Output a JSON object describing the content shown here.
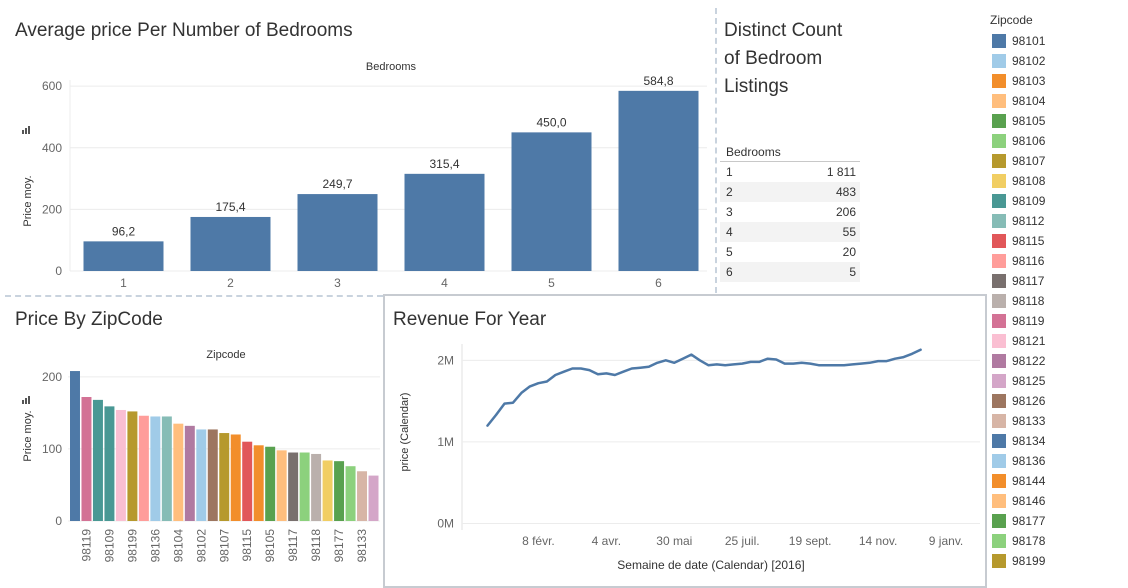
{
  "sections": {
    "bedrooms_title": "Average price Per Number of Bedrooms",
    "distinct_title": "Distinct Count of Bedroom Listings",
    "zip_title": "Price By ZipCode",
    "revenue_title": "Revenue For Year"
  },
  "legend": {
    "title": "Zipcode",
    "items": [
      {
        "label": "98101",
        "color": "#4e79a7"
      },
      {
        "label": "98102",
        "color": "#a0cbe8"
      },
      {
        "label": "98103",
        "color": "#f28e2b"
      },
      {
        "label": "98104",
        "color": "#ffbe7d"
      },
      {
        "label": "98105",
        "color": "#59a14f"
      },
      {
        "label": "98106",
        "color": "#8cd17d"
      },
      {
        "label": "98107",
        "color": "#b6992d"
      },
      {
        "label": "98108",
        "color": "#f1ce63"
      },
      {
        "label": "98109",
        "color": "#499894"
      },
      {
        "label": "98112",
        "color": "#86bcb6"
      },
      {
        "label": "98115",
        "color": "#e15759"
      },
      {
        "label": "98116",
        "color": "#ff9d9a"
      },
      {
        "label": "98117",
        "color": "#79706e"
      },
      {
        "label": "98118",
        "color": "#bab0ac"
      },
      {
        "label": "98119",
        "color": "#d37295"
      },
      {
        "label": "98121",
        "color": "#fabfd2"
      },
      {
        "label": "98122",
        "color": "#b07aa1"
      },
      {
        "label": "98125",
        "color": "#d4a6c8"
      },
      {
        "label": "98126",
        "color": "#9d7660"
      },
      {
        "label": "98133",
        "color": "#d7b5a6"
      },
      {
        "label": "98134",
        "color": "#4e79a7"
      },
      {
        "label": "98136",
        "color": "#a0cbe8"
      },
      {
        "label": "98144",
        "color": "#f28e2b"
      },
      {
        "label": "98146",
        "color": "#ffbe7d"
      },
      {
        "label": "98177",
        "color": "#59a14f"
      },
      {
        "label": "98178",
        "color": "#8cd17d"
      },
      {
        "label": "98199",
        "color": "#b6992d"
      }
    ]
  },
  "table": {
    "header": "Bedrooms",
    "rows": [
      {
        "bedrooms": "1",
        "count": "1 811"
      },
      {
        "bedrooms": "2",
        "count": "483"
      },
      {
        "bedrooms": "3",
        "count": "206"
      },
      {
        "bedrooms": "4",
        "count": "55"
      },
      {
        "bedrooms": "5",
        "count": "20"
      },
      {
        "bedrooms": "6",
        "count": "5"
      }
    ]
  },
  "chart_data": [
    {
      "type": "bar",
      "title": "Average price Per Number of Bedrooms",
      "header": "Bedrooms",
      "ylabel": "Price moy.",
      "categories": [
        "1",
        "2",
        "3",
        "4",
        "5",
        "6"
      ],
      "values": [
        96.2,
        175.4,
        249.7,
        315.4,
        450.0,
        584.8
      ],
      "value_labels": [
        "96,2",
        "175,4",
        "249,7",
        "315,4",
        "450,0",
        "584,8"
      ],
      "yticks": [
        0,
        200,
        400,
        600
      ],
      "ylim": [
        0,
        620
      ],
      "color": "#4e79a7",
      "grid": true
    },
    {
      "type": "bar",
      "title": "Price By ZipCode",
      "header": "Zipcode",
      "ylabel": "Price moy.",
      "bars": [
        {
          "zip": "98134",
          "value": 208,
          "color": "#4e79a7",
          "show_label": false
        },
        {
          "zip": "98119",
          "value": 172,
          "color": "#d37295",
          "show_label": true
        },
        {
          "zip": "98109",
          "value": 168,
          "color": "#499894",
          "show_label": false
        },
        {
          "zip": "98109",
          "value": 159,
          "color": "#499894",
          "show_label": true
        },
        {
          "zip": "98121",
          "value": 154,
          "color": "#fabfd2",
          "show_label": false
        },
        {
          "zip": "98199",
          "value": 152,
          "color": "#b6992d",
          "show_label": true
        },
        {
          "zip": "98116",
          "value": 146,
          "color": "#ff9d9a",
          "show_label": false
        },
        {
          "zip": "98136",
          "value": 145,
          "color": "#a0cbe8",
          "show_label": true
        },
        {
          "zip": "98112",
          "value": 145,
          "color": "#86bcb6",
          "show_label": false
        },
        {
          "zip": "98104",
          "value": 135,
          "color": "#ffbe7d",
          "show_label": true
        },
        {
          "zip": "98122",
          "value": 132,
          "color": "#b07aa1",
          "show_label": false
        },
        {
          "zip": "98102",
          "value": 127,
          "color": "#a0cbe8",
          "show_label": true
        },
        {
          "zip": "98126",
          "value": 127,
          "color": "#9d7660",
          "show_label": false
        },
        {
          "zip": "98107",
          "value": 122,
          "color": "#b6992d",
          "show_label": true
        },
        {
          "zip": "98103",
          "value": 120,
          "color": "#f28e2b",
          "show_label": false
        },
        {
          "zip": "98115",
          "value": 110,
          "color": "#e15759",
          "show_label": true
        },
        {
          "zip": "98144",
          "value": 105,
          "color": "#f28e2b",
          "show_label": false
        },
        {
          "zip": "98105",
          "value": 103,
          "color": "#59a14f",
          "show_label": true
        },
        {
          "zip": "98146",
          "value": 98,
          "color": "#ffbe7d",
          "show_label": false
        },
        {
          "zip": "98117",
          "value": 95,
          "color": "#79706e",
          "show_label": true
        },
        {
          "zip": "98178",
          "value": 95,
          "color": "#8cd17d",
          "show_label": false
        },
        {
          "zip": "98118",
          "value": 93,
          "color": "#bab0ac",
          "show_label": true
        },
        {
          "zip": "98108",
          "value": 84,
          "color": "#f1ce63",
          "show_label": false
        },
        {
          "zip": "98177",
          "value": 83,
          "color": "#59a14f",
          "show_label": true
        },
        {
          "zip": "98106",
          "value": 76,
          "color": "#8cd17d",
          "show_label": false
        },
        {
          "zip": "98133",
          "value": 69,
          "color": "#d7b5a6",
          "show_label": true
        },
        {
          "zip": "98125",
          "value": 63,
          "color": "#d4a6c8",
          "show_label": false
        }
      ],
      "yticks": [
        0,
        100,
        200
      ],
      "ylim": [
        0,
        215
      ],
      "grid": true
    },
    {
      "type": "line",
      "title": "Revenue For Year",
      "xlabel": "Semaine de date (Calendar) [2016]",
      "ylabel": "price (Calendar)",
      "y_unit": "M",
      "x_week_index": [
        0,
        1,
        2,
        3,
        4,
        5,
        6,
        7,
        8,
        9,
        10,
        11,
        12,
        13,
        14,
        15,
        16,
        17,
        18,
        19,
        20,
        21,
        22,
        23,
        24,
        25,
        26,
        27,
        28,
        29,
        30,
        31,
        32,
        33,
        34,
        35,
        36,
        37,
        38,
        39,
        40,
        41,
        42,
        43,
        44,
        45,
        46,
        47,
        48,
        49,
        50,
        51
      ],
      "values": [
        1.2,
        1.33,
        1.47,
        1.48,
        1.6,
        1.68,
        1.72,
        1.74,
        1.82,
        1.86,
        1.9,
        1.9,
        1.88,
        1.83,
        1.84,
        1.82,
        1.86,
        1.9,
        1.91,
        1.92,
        1.97,
        2.0,
        1.97,
        2.02,
        2.07,
        2.0,
        1.94,
        1.95,
        1.94,
        1.95,
        1.96,
        1.98,
        1.98,
        2.02,
        2.01,
        1.96,
        1.96,
        1.97,
        1.96,
        1.94,
        1.94,
        1.94,
        1.94,
        1.95,
        1.96,
        1.97,
        1.99,
        1.99,
        2.02,
        2.04,
        2.08,
        2.13
      ],
      "xticks": [
        {
          "label": "8 févr.",
          "at": 6
        },
        {
          "label": "4 avr.",
          "at": 14
        },
        {
          "label": "30 mai",
          "at": 22
        },
        {
          "label": "25 juil.",
          "at": 30
        },
        {
          "label": "19 sept.",
          "at": 38
        },
        {
          "label": "14 nov.",
          "at": 46
        },
        {
          "label": "9 janv.",
          "at": 54
        }
      ],
      "x_range": [
        -3,
        58
      ],
      "yticks": [
        {
          "v": 0,
          "label": "0M"
        },
        {
          "v": 1,
          "label": "1M"
        },
        {
          "v": 2,
          "label": "2M"
        }
      ],
      "ylim": [
        -0.08,
        2.2
      ],
      "color": "#4e79a7",
      "grid": true
    }
  ]
}
